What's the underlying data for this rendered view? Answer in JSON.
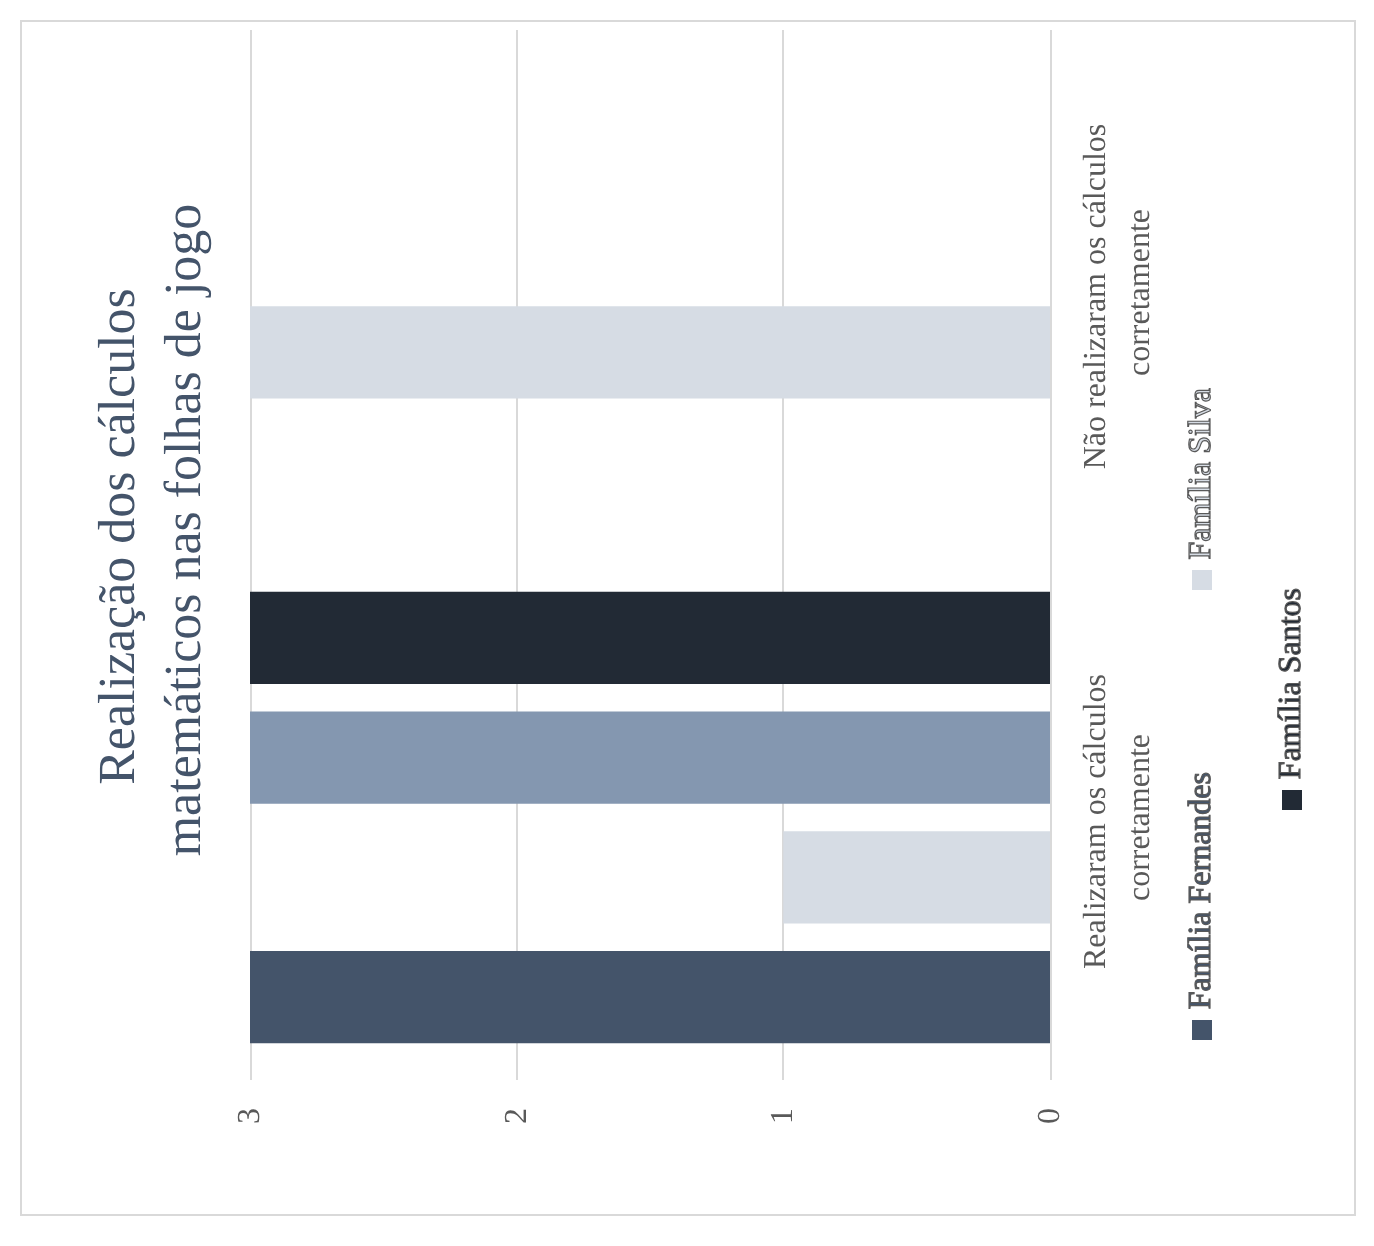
{
  "chart_data": {
    "type": "bar",
    "orientation": "horizontal",
    "title": "Realização dos cálculos matemáticos nas folhas de jogo",
    "categories": [
      "Não realizaram os cálculos corretamente",
      "Realizaram os cálculos corretamente"
    ],
    "series": [
      {
        "name": "Família Fernandes",
        "color": "#44546a",
        "values": [
          0,
          3
        ]
      },
      {
        "name": "Família Silva",
        "color": "#d6dce4",
        "values": [
          3,
          1
        ]
      },
      {
        "color": "#8497b0",
        "values": [
          0,
          3
        ]
      },
      {
        "name": "Família Santos",
        "color": "#222a35",
        "values": [
          0,
          3
        ]
      }
    ],
    "xlim": [
      3,
      0
    ],
    "xticks": [
      3,
      2,
      1,
      0
    ],
    "grid": "x",
    "legend": "right"
  }
}
